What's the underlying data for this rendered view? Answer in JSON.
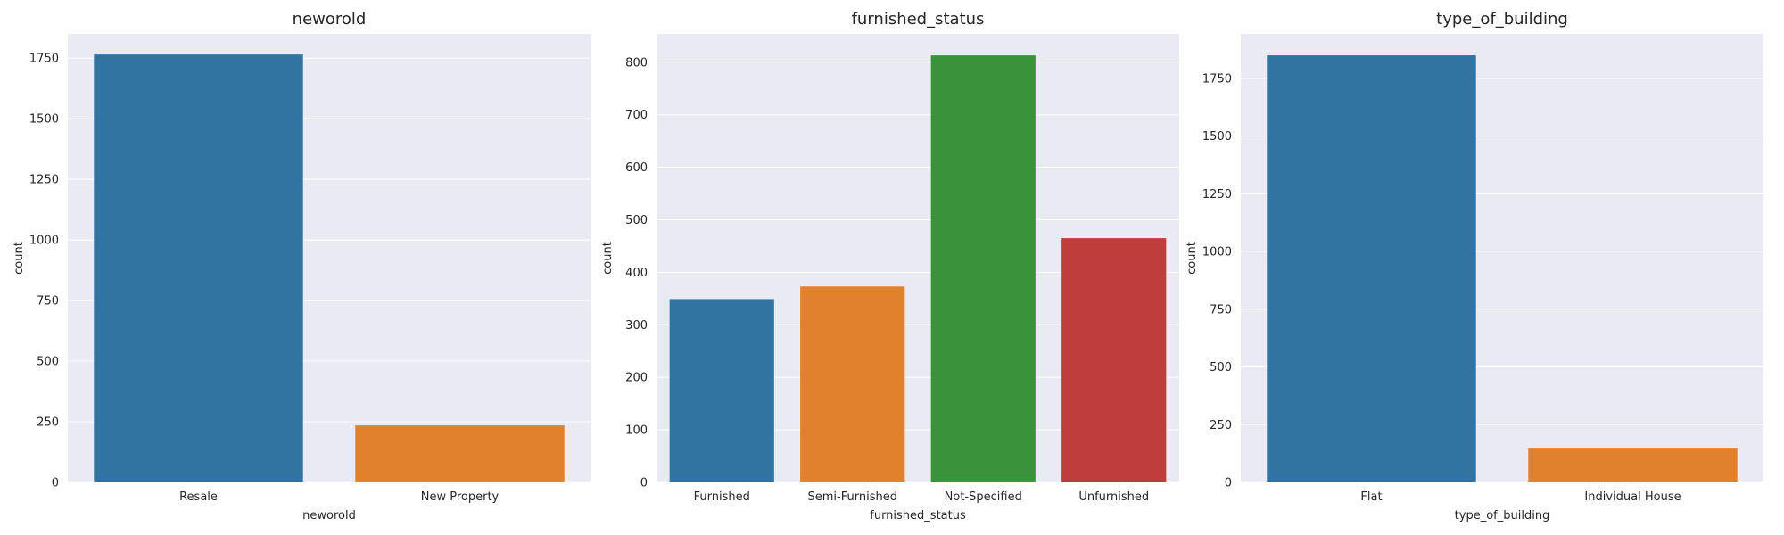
{
  "chart_data": [
    {
      "type": "bar",
      "title": "neworold",
      "xlabel": "neworold",
      "ylabel": "count",
      "categories": [
        "Resale",
        "New Property"
      ],
      "values": [
        1765,
        235
      ],
      "colors": [
        "#3274a1",
        "#e1812c"
      ],
      "ylim": [
        0,
        1850
      ],
      "yticks": [
        0,
        250,
        500,
        750,
        1000,
        1250,
        1500,
        1750
      ],
      "grid": true,
      "legend": "none"
    },
    {
      "type": "bar",
      "title": "furnished_status",
      "xlabel": "furnished_status",
      "ylabel": "count",
      "categories": [
        "Furnished",
        "Semi-Furnished",
        "Not-Specified",
        "Unfurnished"
      ],
      "values": [
        349,
        373,
        813,
        465
      ],
      "colors": [
        "#3274a1",
        "#e1812c",
        "#3a923a",
        "#c03d3e"
      ],
      "ylim": [
        0,
        854
      ],
      "yticks": [
        0,
        100,
        200,
        300,
        400,
        500,
        600,
        700,
        800
      ],
      "grid": true,
      "legend": "none"
    },
    {
      "type": "bar",
      "title": "type_of_building",
      "xlabel": "type_of_building",
      "ylabel": "count",
      "categories": [
        "Flat",
        "Individual House"
      ],
      "values": [
        1850,
        150
      ],
      "colors": [
        "#3274a1",
        "#e1812c"
      ],
      "ylim": [
        0,
        1943
      ],
      "yticks": [
        0,
        250,
        500,
        750,
        1000,
        1250,
        1500,
        1750
      ],
      "grid": true,
      "legend": "none"
    }
  ]
}
